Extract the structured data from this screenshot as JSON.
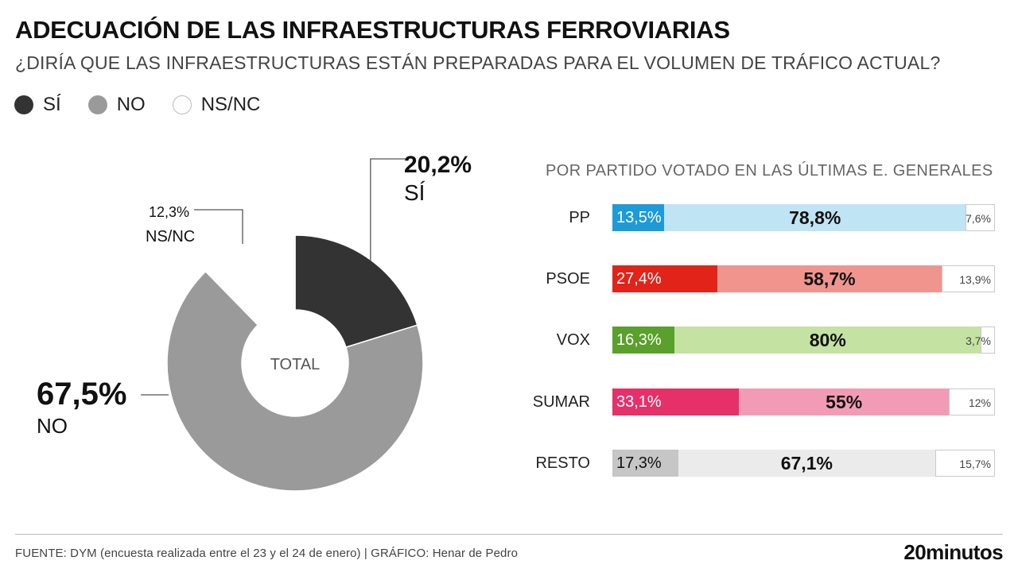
{
  "title": "ADECUACIÓN DE LAS INFRAESTRUCTURAS FERROVIARIAS",
  "subtitle": "¿DIRÍA QUE LAS INFRAESTRUCTURAS ESTÁN PREPARADAS PARA EL VOLUMEN DE TRÁFICO ACTUAL?",
  "legend": [
    {
      "label": "SÍ",
      "color": "#333333"
    },
    {
      "label": "NO",
      "color": "#9a9a9a"
    },
    {
      "label": "NS/NC",
      "color": "#ffffff"
    }
  ],
  "footer": {
    "source": "FUENTE: DYM (encuesta realizada entre el 23 y el 24 de enero)  |  GRÁFICO: Henar de Pedro",
    "logo": "20minutos"
  },
  "chart_data": [
    {
      "type": "pie",
      "center_label": "TOTAL",
      "slices": [
        {
          "category": "SÍ",
          "value": 20.2,
          "label": "20,2%",
          "color": "#333333"
        },
        {
          "category": "NO",
          "value": 67.5,
          "label": "67,5%",
          "color": "#9a9a9a"
        },
        {
          "category": "NS/NC",
          "value": 12.3,
          "label": "12,3%",
          "color": "#ffffff"
        }
      ]
    },
    {
      "type": "bar",
      "orientation": "horizontal",
      "stacked": true,
      "title": "POR PARTIDO VOTADO EN LAS ÚLTIMAS E. GENERALES",
      "categories": [
        "PP",
        "PSOE",
        "VOX",
        "SUMAR",
        "RESTO"
      ],
      "series": [
        {
          "name": "SÍ",
          "values": [
            13.5,
            27.4,
            16.3,
            33.1,
            17.3
          ],
          "labels": [
            "13,5%",
            "27,4%",
            "16,3%",
            "33,1%",
            "17,3%"
          ]
        },
        {
          "name": "NO",
          "values": [
            78.8,
            58.7,
            80,
            55,
            67.1
          ],
          "labels": [
            "78,8%",
            "58,7%",
            "80%",
            "55%",
            "67,1%"
          ]
        },
        {
          "name": "NS/NC",
          "values": [
            7.6,
            13.9,
            3.7,
            12,
            15.7
          ],
          "labels": [
            "7,6%",
            "13,9%",
            "3,7%",
            "12%",
            "15,7%"
          ]
        }
      ],
      "party_colors": [
        {
          "party": "PP",
          "si": "#1e9bd7",
          "no": "#bfe4f4",
          "si_text": "#ffffff"
        },
        {
          "party": "PSOE",
          "si": "#e2231a",
          "no": "#f0958e",
          "si_text": "#ffffff"
        },
        {
          "party": "VOX",
          "si": "#5aa02c",
          "no": "#c4e2a2",
          "si_text": "#ffffff"
        },
        {
          "party": "SUMAR",
          "si": "#e6306a",
          "no": "#f29bb6",
          "si_text": "#ffffff"
        },
        {
          "party": "RESTO",
          "si": "#c6c6c6",
          "no": "#ebebeb",
          "si_text": "#111111"
        }
      ]
    }
  ]
}
